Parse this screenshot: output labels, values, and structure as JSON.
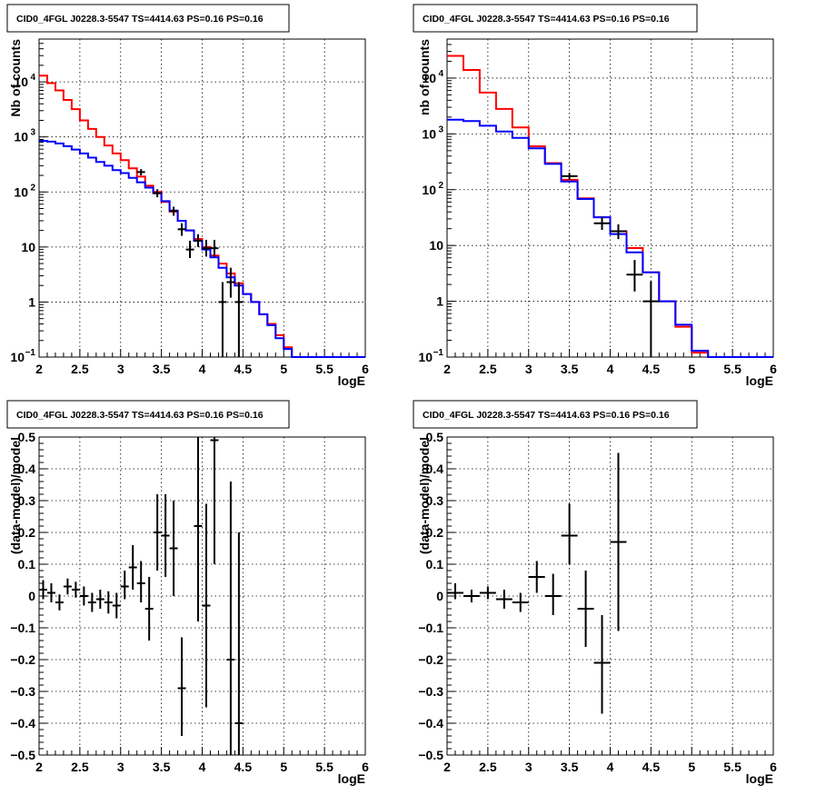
{
  "chart_data": [
    {
      "type": "line",
      "title": "CID0_4FGL J0228.3-5547 TS=4414.63 PS=0.16 PS=0.16",
      "xlabel": "logE",
      "ylabel": "Nb of counts",
      "yscale": "log",
      "xlim": [
        2,
        6
      ],
      "ylim": [
        0.1,
        60000
      ],
      "grid": true,
      "x_ticks": [
        "2",
        "2.5",
        "3",
        "3.5",
        "4",
        "4.5",
        "5",
        "5.5",
        "6"
      ],
      "y_ticks": [
        {
          "value": 0.1,
          "label": "10",
          "sup": "−1"
        },
        {
          "value": 1,
          "label": "1",
          "sup": ""
        },
        {
          "value": 10,
          "label": "10",
          "sup": ""
        },
        {
          "value": 100,
          "label": "10",
          "sup": "2"
        },
        {
          "value": 1000,
          "label": "10",
          "sup": "3"
        },
        {
          "value": 10000,
          "label": "10",
          "sup": "4"
        }
      ],
      "series": [
        {
          "color": "#ff0000",
          "style": "step",
          "bin_edges": [
            2.0,
            2.1,
            2.2,
            2.3,
            2.4,
            2.5,
            2.6,
            2.7,
            2.8,
            2.9,
            3.0,
            3.1,
            3.2,
            3.3,
            3.4,
            3.5,
            3.6,
            3.7,
            3.8,
            3.9,
            4.0,
            4.1,
            4.2,
            4.3,
            4.4,
            4.5,
            4.6,
            4.7,
            4.8,
            4.9,
            5.0,
            5.1,
            5.2,
            5.3,
            5.4,
            5.5,
            5.6,
            5.7,
            5.8,
            5.9,
            6.0
          ],
          "values": [
            13000,
            9500,
            7000,
            4700,
            3200,
            2000,
            1400,
            1000,
            700,
            500,
            380,
            270,
            190,
            130,
            100,
            66,
            44,
            30,
            20,
            14,
            10,
            7,
            5,
            3.3,
            2.2,
            1.4,
            1.0,
            0.6,
            0.4,
            0.25,
            0.15,
            0.1,
            0.1,
            0.1,
            0.1,
            0.1,
            0.1,
            0.1,
            0.1,
            0.1
          ]
        },
        {
          "color": "#0000ff",
          "style": "step",
          "bin_edges": [
            2.0,
            2.1,
            2.2,
            2.3,
            2.4,
            2.5,
            2.6,
            2.7,
            2.8,
            2.9,
            3.0,
            3.1,
            3.2,
            3.3,
            3.4,
            3.5,
            3.6,
            3.7,
            3.8,
            3.9,
            4.0,
            4.1,
            4.2,
            4.3,
            4.4,
            4.5,
            4.6,
            4.7,
            4.8,
            4.9,
            5.0,
            5.1,
            5.2,
            5.3,
            5.4,
            5.5,
            5.6,
            5.7,
            5.8,
            5.9,
            6.0
          ],
          "values": [
            850,
            820,
            760,
            680,
            590,
            500,
            420,
            350,
            300,
            250,
            220,
            180,
            150,
            120,
            95,
            68,
            46,
            30,
            20,
            13,
            9,
            6.5,
            4.2,
            2.8,
            2.0,
            1.4,
            1.0,
            0.6,
            0.38,
            0.22,
            0.14,
            0.1,
            0.1,
            0.1,
            0.1,
            0.1,
            0.1,
            0.1,
            0.1,
            0.1
          ]
        },
        {
          "color": "#000000",
          "style": "errorbar",
          "x_halfwidth": 0.05,
          "points": [
            {
              "x": 3.25,
              "y": 230,
              "lo": 200,
              "hi": 260
            },
            {
              "x": 3.45,
              "y": 95,
              "lo": 80,
              "hi": 112
            },
            {
              "x": 3.65,
              "y": 45,
              "lo": 37,
              "hi": 54
            },
            {
              "x": 3.75,
              "y": 21,
              "lo": 16,
              "hi": 27
            },
            {
              "x": 3.85,
              "y": 9,
              "lo": 6.3,
              "hi": 13
            },
            {
              "x": 3.95,
              "y": 13,
              "lo": 10,
              "hi": 17
            },
            {
              "x": 4.05,
              "y": 9.5,
              "lo": 6.7,
              "hi": 13.5
            },
            {
              "x": 4.15,
              "y": 9.5,
              "lo": 6.7,
              "hi": 13.5
            },
            {
              "x": 4.25,
              "y": 1,
              "lo": 0.1,
              "hi": 2.3
            },
            {
              "x": 4.35,
              "y": 2.3,
              "lo": 1.2,
              "hi": 4.2
            },
            {
              "x": 4.45,
              "y": 1,
              "lo": 0.1,
              "hi": 2.3
            }
          ]
        }
      ]
    },
    {
      "type": "line",
      "title": "CID0_4FGL J0228.3-5547 TS=4414.63 PS=0.16 PS=0.16",
      "xlabel": "logE",
      "ylabel": "nb of counts",
      "yscale": "log",
      "xlim": [
        2,
        6
      ],
      "ylim": [
        0.1,
        50000
      ],
      "grid": true,
      "x_ticks": [
        "2",
        "2.5",
        "3",
        "3.5",
        "4",
        "4.5",
        "5",
        "5.5",
        "6"
      ],
      "y_ticks": [
        {
          "value": 0.1,
          "label": "10",
          "sup": "−1"
        },
        {
          "value": 1,
          "label": "1",
          "sup": ""
        },
        {
          "value": 10,
          "label": "10",
          "sup": ""
        },
        {
          "value": 100,
          "label": "10",
          "sup": "2"
        },
        {
          "value": 1000,
          "label": "10",
          "sup": "3"
        },
        {
          "value": 10000,
          "label": "10",
          "sup": "4"
        }
      ],
      "series": [
        {
          "color": "#ff0000",
          "style": "step",
          "bin_edges": [
            2.0,
            2.2,
            2.4,
            2.6,
            2.8,
            3.0,
            3.2,
            3.4,
            3.6,
            3.8,
            4.0,
            4.2,
            4.4,
            4.6,
            4.8,
            5.0,
            5.2,
            5.4,
            5.6,
            5.8,
            6.0
          ],
          "values": [
            25000,
            14000,
            5500,
            2800,
            1300,
            600,
            300,
            150,
            70,
            32,
            18,
            9,
            3.3,
            1.0,
            0.35,
            0.12,
            0.1,
            0.1,
            0.1,
            0.1
          ]
        },
        {
          "color": "#0000ff",
          "style": "step",
          "bin_edges": [
            2.0,
            2.2,
            2.4,
            2.6,
            2.8,
            3.0,
            3.2,
            3.4,
            3.6,
            3.8,
            4.0,
            4.2,
            4.4,
            4.6,
            4.8,
            5.0,
            5.2,
            5.4,
            5.6,
            5.8,
            6.0
          ],
          "values": [
            1800,
            1700,
            1400,
            1100,
            850,
            550,
            290,
            140,
            68,
            32,
            16,
            7.5,
            3.3,
            1.0,
            0.38,
            0.13,
            0.1,
            0.1,
            0.1,
            0.1
          ]
        },
        {
          "color": "#000000",
          "style": "errorbar",
          "x_halfwidth": 0.1,
          "points": [
            {
              "x": 3.5,
              "y": 175,
              "lo": 150,
              "hi": 200
            },
            {
              "x": 3.9,
              "y": 25,
              "lo": 19,
              "hi": 32
            },
            {
              "x": 4.1,
              "y": 18,
              "lo": 13,
              "hi": 24
            },
            {
              "x": 4.3,
              "y": 3,
              "lo": 1.5,
              "hi": 5.5
            },
            {
              "x": 4.5,
              "y": 1,
              "lo": 0.1,
              "hi": 2.3
            }
          ]
        }
      ]
    },
    {
      "type": "scatter",
      "title": "CID0_4FGL J0228.3-5547 TS=4414.63 PS=0.16 PS=0.16",
      "xlabel": "logE",
      "ylabel": "(data-model)/model",
      "yscale": "linear",
      "xlim": [
        2,
        6
      ],
      "ylim": [
        -0.5,
        0.5
      ],
      "grid": true,
      "x_ticks": [
        "2",
        "2.5",
        "3",
        "3.5",
        "4",
        "4.5",
        "5",
        "5.5",
        "6"
      ],
      "y_ticks": [
        {
          "value": -0.5,
          "label": "−0.5",
          "sup": ""
        },
        {
          "value": -0.4,
          "label": "−0.4",
          "sup": ""
        },
        {
          "value": -0.3,
          "label": "−0.3",
          "sup": ""
        },
        {
          "value": -0.2,
          "label": "−0.2",
          "sup": ""
        },
        {
          "value": -0.1,
          "label": "−0.1",
          "sup": ""
        },
        {
          "value": 0,
          "label": "0",
          "sup": ""
        },
        {
          "value": 0.1,
          "label": "0.1",
          "sup": ""
        },
        {
          "value": 0.2,
          "label": "0.2",
          "sup": ""
        },
        {
          "value": 0.3,
          "label": "0.3",
          "sup": ""
        },
        {
          "value": 0.4,
          "label": "0.4",
          "sup": ""
        },
        {
          "value": 0.5,
          "label": "0.5",
          "sup": ""
        }
      ],
      "series": [
        {
          "color": "#000000",
          "style": "errorbar",
          "x_halfwidth": 0.05,
          "points": [
            {
              "x": 2.05,
              "y": 0.02,
              "lo": -0.01,
              "hi": 0.05
            },
            {
              "x": 2.15,
              "y": 0.01,
              "lo": -0.02,
              "hi": 0.04
            },
            {
              "x": 2.25,
              "y": -0.02,
              "lo": -0.045,
              "hi": 0.005
            },
            {
              "x": 2.35,
              "y": 0.03,
              "lo": 0.005,
              "hi": 0.055
            },
            {
              "x": 2.45,
              "y": 0.02,
              "lo": -0.005,
              "hi": 0.045
            },
            {
              "x": 2.55,
              "y": 0.0,
              "lo": -0.03,
              "hi": 0.03
            },
            {
              "x": 2.65,
              "y": -0.02,
              "lo": -0.05,
              "hi": 0.01
            },
            {
              "x": 2.75,
              "y": -0.01,
              "lo": -0.04,
              "hi": 0.02
            },
            {
              "x": 2.85,
              "y": -0.02,
              "lo": -0.055,
              "hi": 0.015
            },
            {
              "x": 2.95,
              "y": -0.03,
              "lo": -0.07,
              "hi": 0.01
            },
            {
              "x": 3.05,
              "y": 0.03,
              "lo": -0.01,
              "hi": 0.08
            },
            {
              "x": 3.15,
              "y": 0.09,
              "lo": 0.02,
              "hi": 0.16
            },
            {
              "x": 3.25,
              "y": 0.04,
              "lo": -0.02,
              "hi": 0.11
            },
            {
              "x": 3.35,
              "y": -0.04,
              "lo": -0.14,
              "hi": 0.06
            },
            {
              "x": 3.45,
              "y": 0.2,
              "lo": 0.08,
              "hi": 0.32
            },
            {
              "x": 3.55,
              "y": 0.19,
              "lo": 0.06,
              "hi": 0.32
            },
            {
              "x": 3.65,
              "y": 0.15,
              "lo": 0.0,
              "hi": 0.3
            },
            {
              "x": 3.75,
              "y": -0.29,
              "lo": -0.44,
              "hi": -0.13
            },
            {
              "x": 3.95,
              "y": 0.22,
              "lo": -0.08,
              "hi": 0.5
            },
            {
              "x": 4.05,
              "y": -0.03,
              "lo": -0.35,
              "hi": 0.29
            },
            {
              "x": 4.15,
              "y": 0.49,
              "lo": 0.1,
              "hi": 0.5
            },
            {
              "x": 4.35,
              "y": -0.2,
              "lo": -0.5,
              "hi": 0.36
            },
            {
              "x": 4.45,
              "y": -0.4,
              "lo": -0.5,
              "hi": 0.2
            }
          ]
        }
      ]
    },
    {
      "type": "scatter",
      "title": "CID0_4FGL J0228.3-5547 TS=4414.63 PS=0.16 PS=0.16",
      "xlabel": "logE",
      "ylabel": "(data-model)/model",
      "yscale": "linear",
      "xlim": [
        2,
        6
      ],
      "ylim": [
        -0.5,
        0.5
      ],
      "grid": true,
      "x_ticks": [
        "2",
        "2.5",
        "3",
        "3.5",
        "4",
        "4.5",
        "5",
        "5.5",
        "6"
      ],
      "y_ticks": [
        {
          "value": -0.5,
          "label": "−0.5",
          "sup": ""
        },
        {
          "value": -0.4,
          "label": "−0.4",
          "sup": ""
        },
        {
          "value": -0.3,
          "label": "−0.3",
          "sup": ""
        },
        {
          "value": -0.2,
          "label": "−0.2",
          "sup": ""
        },
        {
          "value": -0.1,
          "label": "−0.1",
          "sup": ""
        },
        {
          "value": 0,
          "label": "0",
          "sup": ""
        },
        {
          "value": 0.1,
          "label": "0.1",
          "sup": ""
        },
        {
          "value": 0.2,
          "label": "0.2",
          "sup": ""
        },
        {
          "value": 0.3,
          "label": "0.3",
          "sup": ""
        },
        {
          "value": 0.4,
          "label": "0.4",
          "sup": ""
        },
        {
          "value": 0.5,
          "label": "0.5",
          "sup": ""
        }
      ],
      "series": [
        {
          "color": "#000000",
          "style": "errorbar",
          "x_halfwidth": 0.1,
          "points": [
            {
              "x": 2.1,
              "y": 0.01,
              "lo": -0.01,
              "hi": 0.04
            },
            {
              "x": 2.3,
              "y": 0.0,
              "lo": -0.02,
              "hi": 0.02
            },
            {
              "x": 2.5,
              "y": 0.01,
              "lo": -0.01,
              "hi": 0.03
            },
            {
              "x": 2.7,
              "y": -0.01,
              "lo": -0.04,
              "hi": 0.02
            },
            {
              "x": 2.9,
              "y": -0.02,
              "lo": -0.05,
              "hi": 0.01
            },
            {
              "x": 3.1,
              "y": 0.06,
              "lo": 0.01,
              "hi": 0.11
            },
            {
              "x": 3.3,
              "y": 0.0,
              "lo": -0.06,
              "hi": 0.07
            },
            {
              "x": 3.5,
              "y": 0.19,
              "lo": 0.1,
              "hi": 0.29
            },
            {
              "x": 3.7,
              "y": -0.04,
              "lo": -0.16,
              "hi": 0.08
            },
            {
              "x": 3.9,
              "y": -0.21,
              "lo": -0.37,
              "hi": -0.06
            },
            {
              "x": 4.1,
              "y": 0.17,
              "lo": -0.11,
              "hi": 0.45
            }
          ]
        }
      ]
    }
  ]
}
